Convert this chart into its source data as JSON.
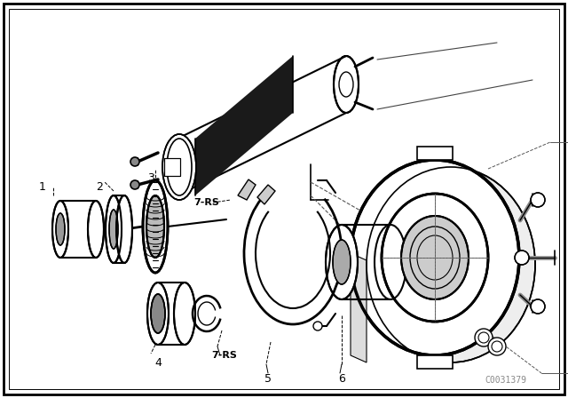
{
  "background_color": "#ffffff",
  "diagram_color": "#000000",
  "watermark": "C0031379",
  "figsize": [
    6.4,
    4.48
  ],
  "dpi": 100
}
